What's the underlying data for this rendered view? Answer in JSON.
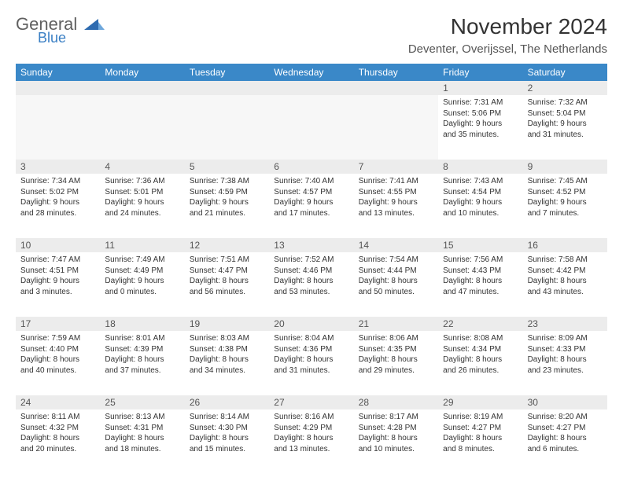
{
  "logo": {
    "general": "General",
    "blue": "Blue",
    "accent_color": "#3a7fc4",
    "text_color": "#606060"
  },
  "title": "November 2024",
  "location": "Deventer, Overijssel, The Netherlands",
  "colors": {
    "header_bg": "#3a88c8",
    "header_text": "#ffffff",
    "daynum_bg": "#ececec",
    "border": "#3a88c8",
    "empty_bg": "#f7f7f7",
    "body_text": "#333333"
  },
  "day_names": [
    "Sunday",
    "Monday",
    "Tuesday",
    "Wednesday",
    "Thursday",
    "Friday",
    "Saturday"
  ],
  "weeks": [
    {
      "nums": [
        "",
        "",
        "",
        "",
        "",
        "1",
        "2"
      ],
      "cells": [
        null,
        null,
        null,
        null,
        null,
        {
          "sunrise": "Sunrise: 7:31 AM",
          "sunset": "Sunset: 5:06 PM",
          "day1": "Daylight: 9 hours",
          "day2": "and 35 minutes."
        },
        {
          "sunrise": "Sunrise: 7:32 AM",
          "sunset": "Sunset: 5:04 PM",
          "day1": "Daylight: 9 hours",
          "day2": "and 31 minutes."
        }
      ]
    },
    {
      "nums": [
        "3",
        "4",
        "5",
        "6",
        "7",
        "8",
        "9"
      ],
      "cells": [
        {
          "sunrise": "Sunrise: 7:34 AM",
          "sunset": "Sunset: 5:02 PM",
          "day1": "Daylight: 9 hours",
          "day2": "and 28 minutes."
        },
        {
          "sunrise": "Sunrise: 7:36 AM",
          "sunset": "Sunset: 5:01 PM",
          "day1": "Daylight: 9 hours",
          "day2": "and 24 minutes."
        },
        {
          "sunrise": "Sunrise: 7:38 AM",
          "sunset": "Sunset: 4:59 PM",
          "day1": "Daylight: 9 hours",
          "day2": "and 21 minutes."
        },
        {
          "sunrise": "Sunrise: 7:40 AM",
          "sunset": "Sunset: 4:57 PM",
          "day1": "Daylight: 9 hours",
          "day2": "and 17 minutes."
        },
        {
          "sunrise": "Sunrise: 7:41 AM",
          "sunset": "Sunset: 4:55 PM",
          "day1": "Daylight: 9 hours",
          "day2": "and 13 minutes."
        },
        {
          "sunrise": "Sunrise: 7:43 AM",
          "sunset": "Sunset: 4:54 PM",
          "day1": "Daylight: 9 hours",
          "day2": "and 10 minutes."
        },
        {
          "sunrise": "Sunrise: 7:45 AM",
          "sunset": "Sunset: 4:52 PM",
          "day1": "Daylight: 9 hours",
          "day2": "and 7 minutes."
        }
      ]
    },
    {
      "nums": [
        "10",
        "11",
        "12",
        "13",
        "14",
        "15",
        "16"
      ],
      "cells": [
        {
          "sunrise": "Sunrise: 7:47 AM",
          "sunset": "Sunset: 4:51 PM",
          "day1": "Daylight: 9 hours",
          "day2": "and 3 minutes."
        },
        {
          "sunrise": "Sunrise: 7:49 AM",
          "sunset": "Sunset: 4:49 PM",
          "day1": "Daylight: 9 hours",
          "day2": "and 0 minutes."
        },
        {
          "sunrise": "Sunrise: 7:51 AM",
          "sunset": "Sunset: 4:47 PM",
          "day1": "Daylight: 8 hours",
          "day2": "and 56 minutes."
        },
        {
          "sunrise": "Sunrise: 7:52 AM",
          "sunset": "Sunset: 4:46 PM",
          "day1": "Daylight: 8 hours",
          "day2": "and 53 minutes."
        },
        {
          "sunrise": "Sunrise: 7:54 AM",
          "sunset": "Sunset: 4:44 PM",
          "day1": "Daylight: 8 hours",
          "day2": "and 50 minutes."
        },
        {
          "sunrise": "Sunrise: 7:56 AM",
          "sunset": "Sunset: 4:43 PM",
          "day1": "Daylight: 8 hours",
          "day2": "and 47 minutes."
        },
        {
          "sunrise": "Sunrise: 7:58 AM",
          "sunset": "Sunset: 4:42 PM",
          "day1": "Daylight: 8 hours",
          "day2": "and 43 minutes."
        }
      ]
    },
    {
      "nums": [
        "17",
        "18",
        "19",
        "20",
        "21",
        "22",
        "23"
      ],
      "cells": [
        {
          "sunrise": "Sunrise: 7:59 AM",
          "sunset": "Sunset: 4:40 PM",
          "day1": "Daylight: 8 hours",
          "day2": "and 40 minutes."
        },
        {
          "sunrise": "Sunrise: 8:01 AM",
          "sunset": "Sunset: 4:39 PM",
          "day1": "Daylight: 8 hours",
          "day2": "and 37 minutes."
        },
        {
          "sunrise": "Sunrise: 8:03 AM",
          "sunset": "Sunset: 4:38 PM",
          "day1": "Daylight: 8 hours",
          "day2": "and 34 minutes."
        },
        {
          "sunrise": "Sunrise: 8:04 AM",
          "sunset": "Sunset: 4:36 PM",
          "day1": "Daylight: 8 hours",
          "day2": "and 31 minutes."
        },
        {
          "sunrise": "Sunrise: 8:06 AM",
          "sunset": "Sunset: 4:35 PM",
          "day1": "Daylight: 8 hours",
          "day2": "and 29 minutes."
        },
        {
          "sunrise": "Sunrise: 8:08 AM",
          "sunset": "Sunset: 4:34 PM",
          "day1": "Daylight: 8 hours",
          "day2": "and 26 minutes."
        },
        {
          "sunrise": "Sunrise: 8:09 AM",
          "sunset": "Sunset: 4:33 PM",
          "day1": "Daylight: 8 hours",
          "day2": "and 23 minutes."
        }
      ]
    },
    {
      "nums": [
        "24",
        "25",
        "26",
        "27",
        "28",
        "29",
        "30"
      ],
      "cells": [
        {
          "sunrise": "Sunrise: 8:11 AM",
          "sunset": "Sunset: 4:32 PM",
          "day1": "Daylight: 8 hours",
          "day2": "and 20 minutes."
        },
        {
          "sunrise": "Sunrise: 8:13 AM",
          "sunset": "Sunset: 4:31 PM",
          "day1": "Daylight: 8 hours",
          "day2": "and 18 minutes."
        },
        {
          "sunrise": "Sunrise: 8:14 AM",
          "sunset": "Sunset: 4:30 PM",
          "day1": "Daylight: 8 hours",
          "day2": "and 15 minutes."
        },
        {
          "sunrise": "Sunrise: 8:16 AM",
          "sunset": "Sunset: 4:29 PM",
          "day1": "Daylight: 8 hours",
          "day2": "and 13 minutes."
        },
        {
          "sunrise": "Sunrise: 8:17 AM",
          "sunset": "Sunset: 4:28 PM",
          "day1": "Daylight: 8 hours",
          "day2": "and 10 minutes."
        },
        {
          "sunrise": "Sunrise: 8:19 AM",
          "sunset": "Sunset: 4:27 PM",
          "day1": "Daylight: 8 hours",
          "day2": "and 8 minutes."
        },
        {
          "sunrise": "Sunrise: 8:20 AM",
          "sunset": "Sunset: 4:27 PM",
          "day1": "Daylight: 8 hours",
          "day2": "and 6 minutes."
        }
      ]
    }
  ]
}
